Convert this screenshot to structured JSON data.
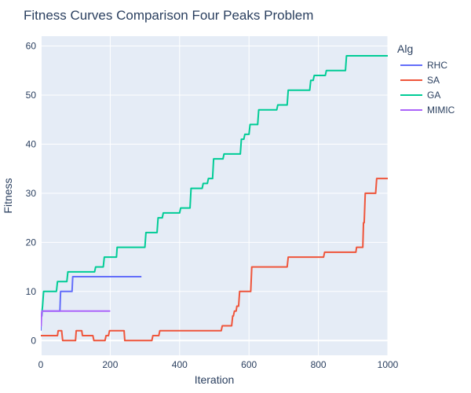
{
  "chart_data": {
    "type": "line",
    "title": "Fitness Curves Comparison Four Peaks Problem",
    "xlabel": "Iteration",
    "ylabel": "Fitness",
    "xlim": [
      0,
      1000
    ],
    "ylim": [
      -3,
      62
    ],
    "x_ticks": [
      0,
      200,
      400,
      600,
      800,
      1000
    ],
    "y_ticks": [
      0,
      10,
      20,
      30,
      40,
      50,
      60
    ],
    "grid": true,
    "legend": {
      "title": "Alg",
      "placement": "right"
    },
    "series": [
      {
        "name": "RHC",
        "color": "#636efa",
        "x": [
          0,
          1,
          3,
          4,
          7,
          12,
          55,
          57,
          90,
          92,
          290
        ],
        "y": [
          2,
          5,
          5,
          6,
          6,
          6,
          6,
          10,
          10,
          13,
          13
        ]
      },
      {
        "name": "SA",
        "color": "#ef553b",
        "x": [
          0,
          48,
          50,
          60,
          63,
          100,
          102,
          118,
          120,
          150,
          153,
          185,
          188,
          195,
          198,
          240,
          242,
          320,
          323,
          340,
          343,
          520,
          523,
          550,
          553,
          555,
          558,
          563,
          565,
          570,
          573,
          605,
          608,
          710,
          713,
          815,
          818,
          908,
          910,
          928,
          930,
          932,
          935,
          950,
          953,
          965,
          968,
          1000
        ],
        "y": [
          1,
          1,
          2,
          2,
          0,
          0,
          2,
          2,
          1,
          1,
          0,
          0,
          1,
          1,
          2,
          2,
          0,
          0,
          1,
          1,
          2,
          2,
          3,
          3,
          5,
          5,
          6,
          6,
          7,
          7,
          10,
          10,
          15,
          15,
          17,
          17,
          18,
          18,
          19,
          19,
          24,
          24,
          30,
          30,
          30,
          30,
          33,
          33
        ]
      },
      {
        "name": "GA",
        "color": "#00cc96",
        "x": [
          0,
          2,
          5,
          8,
          45,
          48,
          75,
          78,
          155,
          158,
          180,
          183,
          218,
          220,
          300,
          303,
          335,
          338,
          350,
          353,
          400,
          403,
          430,
          433,
          465,
          468,
          480,
          483,
          495,
          498,
          525,
          528,
          575,
          578,
          585,
          588,
          600,
          603,
          625,
          628,
          680,
          683,
          710,
          713,
          775,
          778,
          785,
          788,
          820,
          823,
          878,
          881,
          1000
        ],
        "y": [
          5,
          5,
          7,
          10,
          10,
          12,
          12,
          14,
          14,
          15,
          15,
          17,
          17,
          19,
          19,
          22,
          22,
          25,
          25,
          26,
          26,
          27,
          27,
          31,
          31,
          32,
          32,
          33,
          33,
          37,
          37,
          38,
          38,
          41,
          41,
          42,
          42,
          44,
          44,
          47,
          47,
          48,
          48,
          51,
          51,
          53,
          53,
          54,
          54,
          55,
          55,
          58,
          58
        ]
      },
      {
        "name": "MIMIC",
        "color": "#ab63fa",
        "x": [
          0,
          1,
          2,
          3,
          200
        ],
        "y": [
          3,
          3,
          5,
          6,
          6
        ]
      }
    ]
  }
}
